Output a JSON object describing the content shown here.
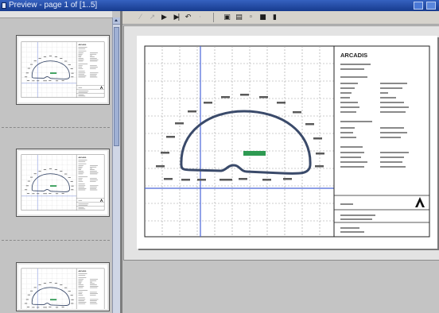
{
  "window": {
    "title": "Preview - page 1 of [1..5]",
    "icon": "preview-app-icon",
    "controls": [
      "minimize-icon",
      "close-icon"
    ]
  },
  "toolbar": {
    "buttons": [
      {
        "icon": "first-page-icon",
        "enabled": false
      },
      {
        "icon": "prev-page-icon",
        "enabled": false
      },
      {
        "icon": "next-page-icon",
        "enabled": true
      },
      {
        "icon": "last-page-icon",
        "enabled": true
      },
      {
        "icon": "undo-icon",
        "enabled": true
      },
      {
        "icon": "redo-icon",
        "enabled": false
      },
      {
        "icon": "print-icon",
        "enabled": true
      },
      {
        "icon": "print-setup-icon",
        "enabled": true
      },
      {
        "icon": "zoom-icon",
        "enabled": true
      },
      {
        "icon": "save-icon",
        "enabled": true
      },
      {
        "icon": "close-preview-icon",
        "enabled": true
      }
    ]
  },
  "thumbnails": {
    "visible_count": 3
  },
  "page": {
    "title_block": {
      "company": "ARCADIS"
    }
  },
  "colors": {
    "titlebar": "#173b8e",
    "profile_outline": "#3a4a6a",
    "axis_line": "#4a66d8",
    "marker": "#2e9a52"
  }
}
